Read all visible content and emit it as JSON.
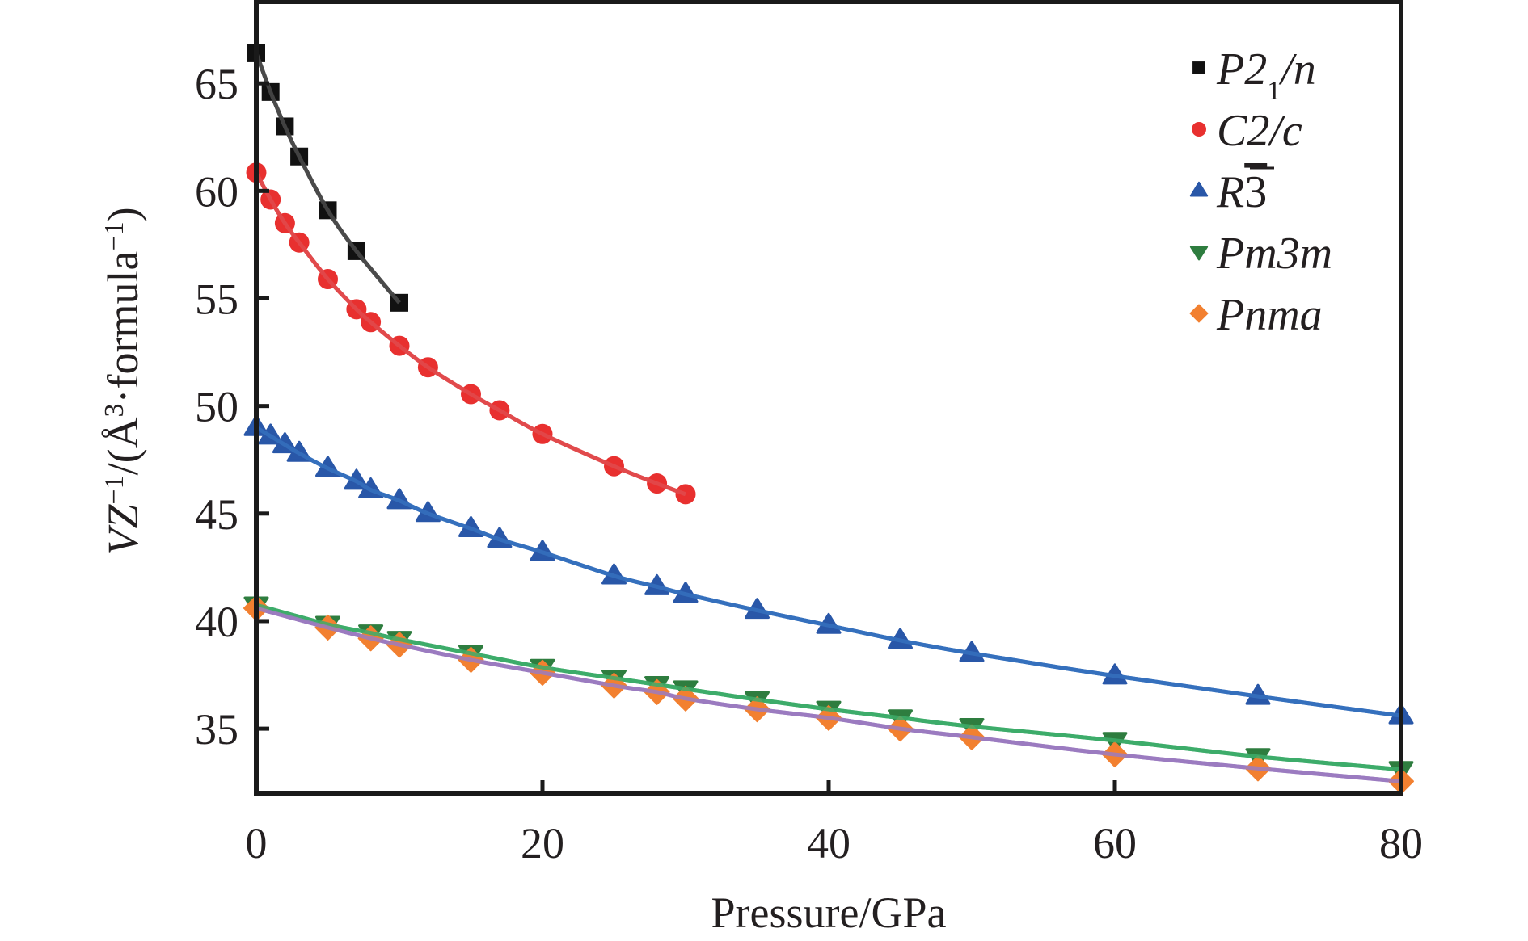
{
  "chart_data": {
    "type": "line",
    "title": "",
    "xlabel": "Pressure/GPa",
    "ylabel": {
      "parts": [
        {
          "text": "V",
          "style": "italic"
        },
        {
          "text": "Z",
          "style": "italic"
        },
        {
          "text": "−1",
          "style": "sup"
        },
        {
          "text": "/(Å",
          "style": "normal"
        },
        {
          "text": "3",
          "style": "sup"
        },
        {
          "text": "·formula",
          "style": "normal"
        },
        {
          "text": "−1",
          "style": "sup"
        },
        {
          "text": ")",
          "style": "normal"
        }
      ],
      "plain": "VZ⁻¹/(Å³·formula⁻¹)"
    },
    "xlim": [
      0,
      80
    ],
    "ylim": [
      32.0,
      68.8
    ],
    "xticks": [
      0,
      20,
      40,
      60,
      80
    ],
    "xtick_labels": [
      "0",
      "20",
      "40",
      "60",
      "80"
    ],
    "yticks": [
      35,
      40,
      45,
      50,
      55,
      60,
      65
    ],
    "ytick_labels": [
      "35",
      "40",
      "45",
      "50",
      "55",
      "60",
      "65"
    ],
    "grid": false,
    "legend_position": "top-right",
    "series": [
      {
        "name": "P2₁/n",
        "label_parts": [
          {
            "text": "P2",
            "style": "normal"
          },
          {
            "text": "1",
            "style": "sub"
          },
          {
            "text": "/n",
            "style": "normal"
          }
        ],
        "marker": "square",
        "marker_color": "#111111",
        "line_color": "#4a4a4a",
        "x": [
          0,
          1,
          2,
          3,
          5,
          7,
          10
        ],
        "y": [
          66.4,
          64.6,
          63.0,
          61.6,
          59.1,
          57.2,
          54.8
        ]
      },
      {
        "name": "C2/c",
        "label_parts": [
          {
            "text": "C2/c",
            "style": "normal"
          }
        ],
        "marker": "circle",
        "marker_color": "#e8302f",
        "line_color": "#e04a4c",
        "x": [
          0,
          1,
          2,
          3,
          5,
          7,
          8,
          10,
          12,
          15,
          17,
          20,
          25,
          28,
          30
        ],
        "y": [
          60.85,
          59.6,
          58.5,
          57.6,
          55.9,
          54.5,
          53.9,
          52.8,
          51.8,
          50.55,
          49.8,
          48.7,
          47.2,
          46.4,
          45.9
        ]
      },
      {
        "name": "R3̄",
        "label_parts": [
          {
            "text": "R",
            "style": "normal"
          },
          {
            "text": "3",
            "style": "overline"
          }
        ],
        "marker": "triangle-up",
        "marker_color": "#2957a8",
        "line_color": "#3570bd",
        "x": [
          0,
          1,
          2,
          3,
          5,
          7,
          8,
          10,
          12,
          15,
          17,
          20,
          25,
          28,
          30,
          35,
          40,
          45,
          50,
          60,
          70,
          80
        ],
        "y": [
          49.0,
          48.6,
          48.2,
          47.8,
          47.1,
          46.5,
          46.1,
          45.6,
          45.0,
          44.3,
          43.8,
          43.2,
          42.1,
          41.6,
          41.25,
          40.5,
          39.8,
          39.1,
          38.5,
          37.45,
          36.5,
          35.6
        ]
      },
      {
        "name": "Pm3m",
        "label_parts": [
          {
            "text": "Pm3m",
            "style": "normal"
          }
        ],
        "marker": "triangle-down",
        "marker_color": "#2e7d3f",
        "line_color": "#3dab6a",
        "x": [
          0,
          5,
          8,
          10,
          15,
          20,
          25,
          28,
          30,
          35,
          40,
          45,
          50,
          60,
          70,
          80
        ],
        "y": [
          40.75,
          39.85,
          39.45,
          39.15,
          38.5,
          37.85,
          37.35,
          37.05,
          36.85,
          36.35,
          35.9,
          35.5,
          35.1,
          34.45,
          33.7,
          33.1
        ]
      },
      {
        "name": "Pnma",
        "label_parts": [
          {
            "text": "Pnma",
            "style": "normal"
          }
        ],
        "marker": "diamond",
        "marker_color": "#f28030",
        "line_color": "#9b7bbf",
        "x": [
          0,
          5,
          8,
          10,
          15,
          20,
          25,
          28,
          30,
          35,
          40,
          45,
          50,
          60,
          70,
          80
        ],
        "y": [
          40.6,
          39.7,
          39.2,
          38.9,
          38.2,
          37.6,
          37.0,
          36.7,
          36.4,
          35.9,
          35.5,
          35.0,
          34.6,
          33.8,
          33.15,
          32.55
        ]
      }
    ]
  }
}
